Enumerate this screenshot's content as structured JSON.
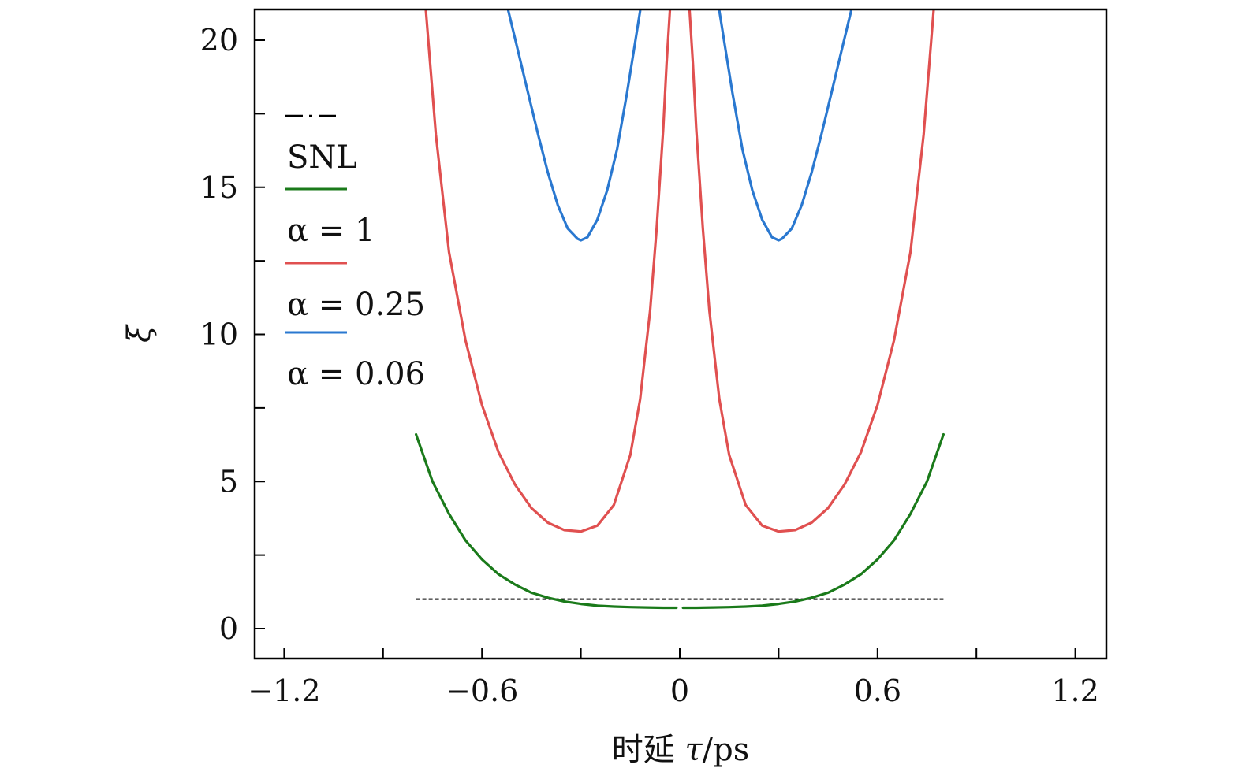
{
  "chart_data": {
    "type": "line",
    "title": "",
    "xlabel": "时延 τ/ps",
    "xlabel_prefix": "时延 ",
    "xlabel_var": "τ",
    "xlabel_unit": "/ps",
    "ylabel": "ξ",
    "xlim": [
      -1.3,
      1.3
    ],
    "ylim": [
      -1,
      21
    ],
    "x_ticks": [
      -1.2,
      -0.6,
      0,
      0.6,
      1.2
    ],
    "x_tick_labels": [
      "−1.2",
      "−0.6",
      "0",
      "0.6",
      "1.2"
    ],
    "x_minor_ticks": [
      -0.9,
      -0.3,
      0.3,
      0.9
    ],
    "y_ticks": [
      0,
      5,
      10,
      15,
      20
    ],
    "y_tick_labels": [
      "0",
      "5",
      "10",
      "15",
      "20"
    ],
    "y_minor_ticks": [
      2.5,
      7.5,
      12.5,
      17.5
    ],
    "grid": false,
    "legend_position": "upper-left",
    "legend": [
      {
        "label": "SNL",
        "style": "dash-dot",
        "color": "#000000"
      },
      {
        "label": "α = 1",
        "style": "solid",
        "color": "#1a7a1a"
      },
      {
        "label": "α = 0.25",
        "style": "solid",
        "color": "#e05050"
      },
      {
        "label": "α = 0.06",
        "style": "solid",
        "color": "#2a78d0"
      }
    ],
    "series": [
      {
        "name": "SNL",
        "style": "dashed",
        "color": "#000000",
        "x": [
          -0.8,
          0.8
        ],
        "y": [
          1.0,
          1.0
        ]
      },
      {
        "name": "green",
        "color": "#1a7a1a",
        "segments": [
          {
            "x": [
              -0.8,
              -0.75,
              -0.7,
              -0.65,
              -0.6,
              -0.55,
              -0.5,
              -0.45,
              -0.4,
              -0.35,
              -0.3,
              -0.25,
              -0.2,
              -0.15,
              -0.1,
              -0.05,
              -0.01
            ],
            "y": [
              6.6,
              5.0,
              3.9,
              3.0,
              2.35,
              1.85,
              1.5,
              1.22,
              1.05,
              0.92,
              0.84,
              0.78,
              0.75,
              0.73,
              0.72,
              0.71,
              0.71
            ]
          },
          {
            "x": [
              0.01,
              0.05,
              0.1,
              0.15,
              0.2,
              0.25,
              0.3,
              0.35,
              0.4,
              0.45,
              0.5,
              0.55,
              0.6,
              0.65,
              0.7,
              0.75,
              0.8
            ],
            "y": [
              0.71,
              0.71,
              0.72,
              0.73,
              0.75,
              0.78,
              0.84,
              0.92,
              1.05,
              1.22,
              1.5,
              1.85,
              2.35,
              3.0,
              3.9,
              5.0,
              6.6
            ]
          }
        ]
      },
      {
        "name": "red",
        "color": "#e05050",
        "segments": [
          {
            "x": [
              -0.77,
              -0.74,
              -0.7,
              -0.65,
              -0.6,
              -0.55,
              -0.5,
              -0.45,
              -0.4,
              -0.35,
              -0.3,
              -0.25,
              -0.2,
              -0.15,
              -0.12,
              -0.09,
              -0.07,
              -0.05,
              -0.04,
              -0.03
            ],
            "y": [
              21.0,
              16.8,
              12.8,
              9.8,
              7.6,
              6.0,
              4.9,
              4.1,
              3.6,
              3.35,
              3.3,
              3.5,
              4.2,
              5.9,
              7.8,
              10.8,
              13.6,
              17.0,
              19.2,
              21.0
            ]
          },
          {
            "x": [
              0.03,
              0.04,
              0.05,
              0.07,
              0.09,
              0.12,
              0.15,
              0.2,
              0.25,
              0.3,
              0.35,
              0.4,
              0.45,
              0.5,
              0.55,
              0.6,
              0.65,
              0.7,
              0.74,
              0.77
            ],
            "y": [
              21.0,
              19.2,
              17.0,
              13.6,
              10.8,
              7.8,
              5.9,
              4.2,
              3.5,
              3.3,
              3.35,
              3.6,
              4.1,
              4.9,
              6.0,
              7.6,
              9.8,
              12.8,
              16.8,
              21.0
            ]
          }
        ]
      },
      {
        "name": "blue",
        "color": "#2a78d0",
        "segments": [
          {
            "x": [
              -0.52,
              -0.49,
              -0.46,
              -0.43,
              -0.4,
              -0.37,
              -0.34,
              -0.31,
              -0.3,
              -0.28,
              -0.25,
              -0.22,
              -0.19,
              -0.16,
              -0.14,
              -0.12
            ],
            "y": [
              21.0,
              19.6,
              18.2,
              16.8,
              15.5,
              14.4,
              13.6,
              13.25,
              13.2,
              13.3,
              13.9,
              14.9,
              16.3,
              18.2,
              19.6,
              21.0
            ]
          },
          {
            "x": [
              0.12,
              0.14,
              0.16,
              0.19,
              0.22,
              0.25,
              0.28,
              0.3,
              0.31,
              0.34,
              0.37,
              0.4,
              0.43,
              0.46,
              0.49,
              0.52
            ],
            "y": [
              21.0,
              19.6,
              18.2,
              16.3,
              14.9,
              13.9,
              13.3,
              13.2,
              13.25,
              13.6,
              14.4,
              15.5,
              16.8,
              18.2,
              19.6,
              21.0
            ]
          }
        ]
      }
    ]
  }
}
